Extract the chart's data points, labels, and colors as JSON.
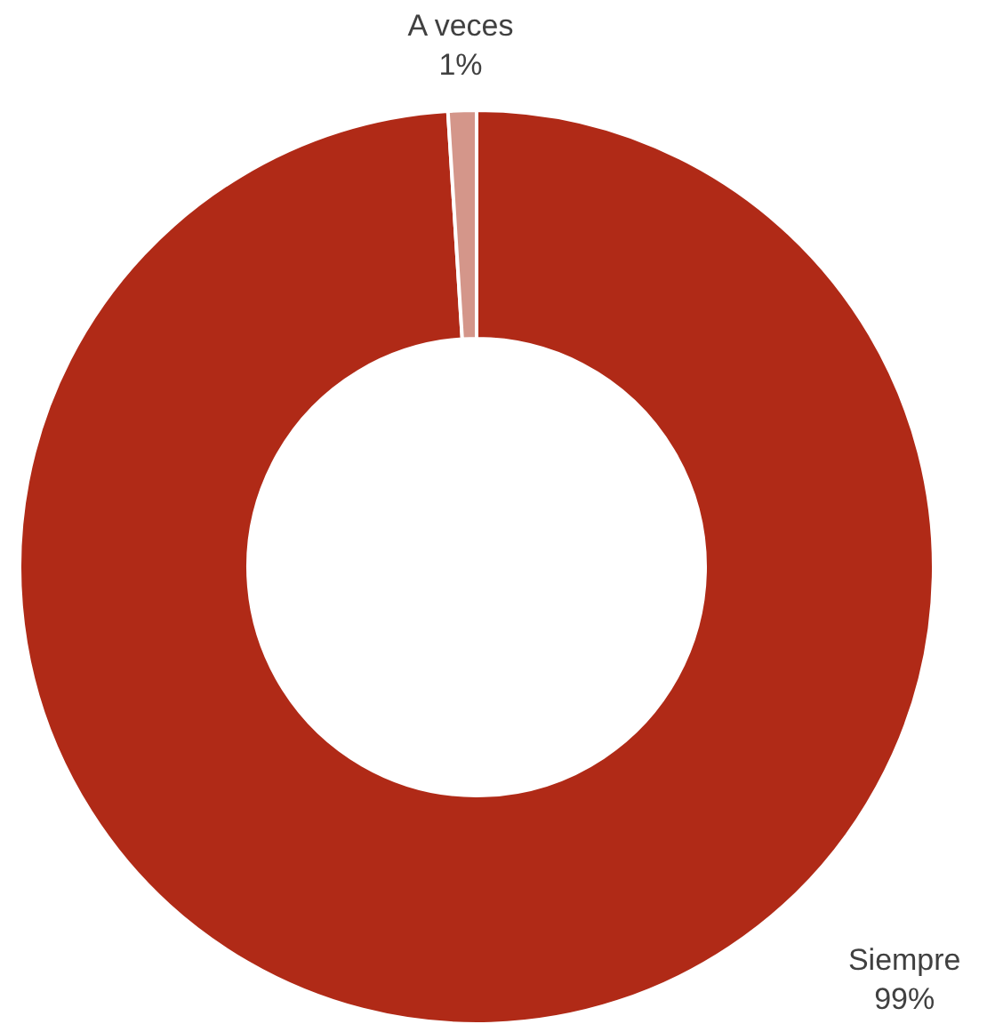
{
  "chart_data": {
    "type": "donut",
    "categories": [
      "Siempre",
      "A veces"
    ],
    "values": [
      99,
      1
    ],
    "colors": [
      "#b02a17",
      "#d4968a"
    ],
    "value_labels": [
      "99%",
      "1%"
    ],
    "legend": false
  }
}
